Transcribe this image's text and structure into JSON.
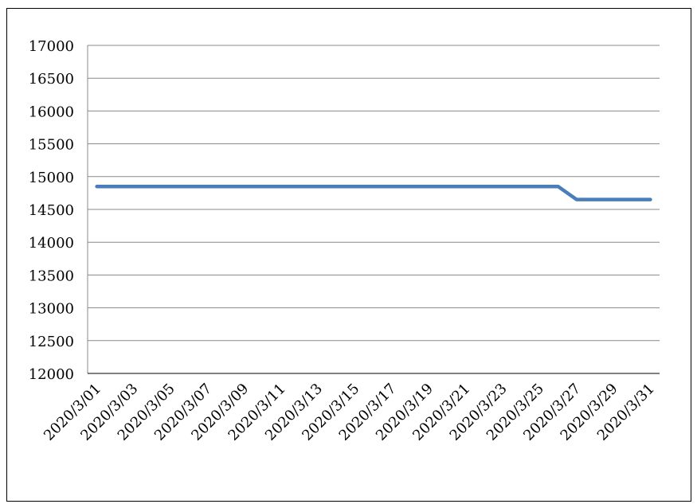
{
  "chart_data": {
    "type": "line",
    "title": "",
    "xlabel": "",
    "ylabel": "",
    "ylim": [
      12000,
      17000
    ],
    "yticks": [
      "12000",
      "12500",
      "13000",
      "13500",
      "14000",
      "14500",
      "15000",
      "15500",
      "16000",
      "16500",
      "17000"
    ],
    "grid": true,
    "legend": "none",
    "xtick_labels": [
      "2020/3/01",
      "2020/3/03",
      "2020/3/05",
      "2020/3/07",
      "2020/3/09",
      "2020/3/11",
      "2020/3/13",
      "2020/3/15",
      "2020/3/17",
      "2020/3/19",
      "2020/3/21",
      "2020/3/23",
      "2020/3/25",
      "2020/3/27",
      "2020/3/29",
      "2020/3/31"
    ],
    "x": [
      "2020/3/01",
      "2020/3/02",
      "2020/3/03",
      "2020/3/04",
      "2020/3/05",
      "2020/3/06",
      "2020/3/07",
      "2020/3/08",
      "2020/3/09",
      "2020/3/10",
      "2020/3/11",
      "2020/3/12",
      "2020/3/13",
      "2020/3/14",
      "2020/3/15",
      "2020/3/16",
      "2020/3/17",
      "2020/3/18",
      "2020/3/19",
      "2020/3/20",
      "2020/3/21",
      "2020/3/22",
      "2020/3/23",
      "2020/3/24",
      "2020/3/25",
      "2020/3/26",
      "2020/3/27",
      "2020/3/28",
      "2020/3/29",
      "2020/3/30",
      "2020/3/31"
    ],
    "series": [
      {
        "values": [
          14850,
          14850,
          14850,
          14850,
          14850,
          14850,
          14850,
          14850,
          14850,
          14850,
          14850,
          14850,
          14850,
          14850,
          14850,
          14850,
          14850,
          14850,
          14850,
          14850,
          14850,
          14850,
          14850,
          14850,
          14850,
          14850,
          14650,
          14650,
          14650,
          14650,
          14650
        ],
        "color": "#4a7ebb"
      }
    ]
  }
}
